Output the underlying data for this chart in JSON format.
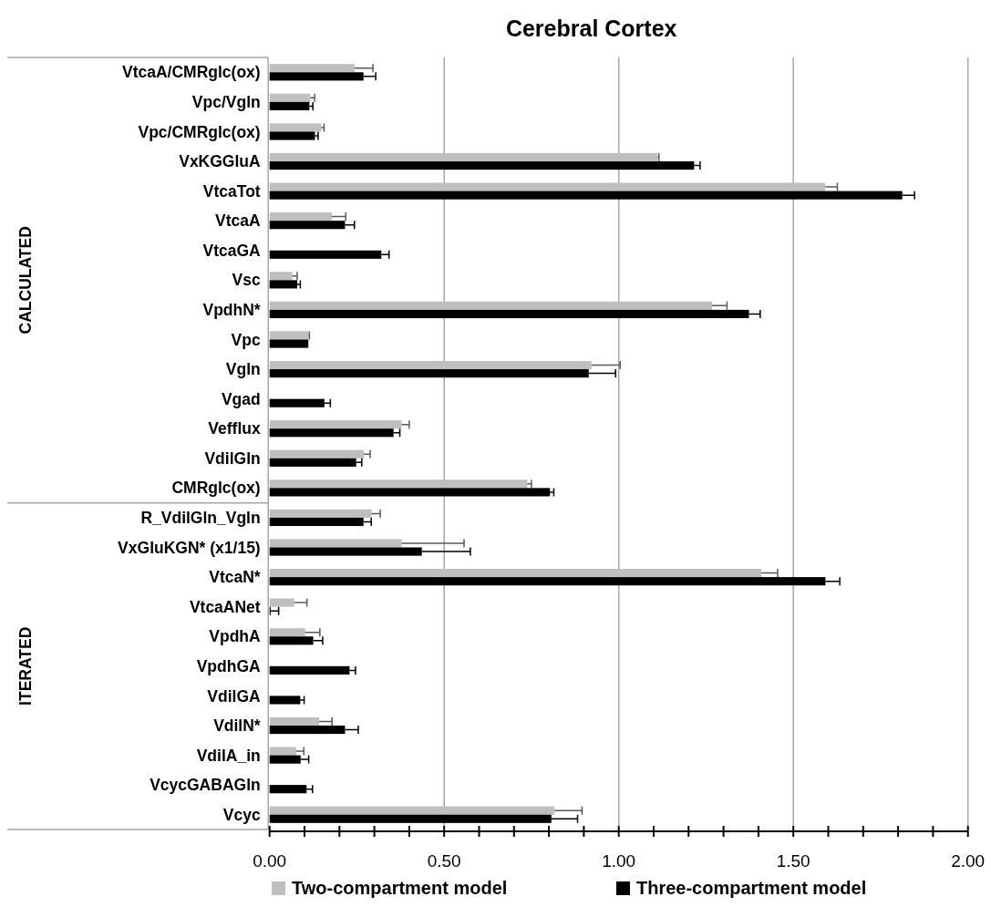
{
  "chart_data": {
    "type": "bar",
    "orientation": "horizontal",
    "title": "Cerebral Cortex",
    "categories": [
      "VtcaA/CMRglc(ox)",
      "Vpc/Vgln",
      "Vpc/CMRglc(ox)",
      "VxKGGluA",
      "VtcaTot",
      "VtcaA",
      "VtcaGA",
      "Vsc",
      "VpdhN*",
      "Vpc",
      "Vgln",
      "Vgad",
      "Vefflux",
      "VdilGln",
      "CMRglc(ox)",
      "R_VdilGln_Vgln",
      "VxGluKGN* (x1/15)",
      "VtcaN*",
      "VtcaANet",
      "VpdhA",
      "VpdhGA",
      "VdilGA",
      "VdilN*",
      "VdilA_in",
      "VcycGABAGln",
      "Vcyc"
    ],
    "series": [
      {
        "name": "Two-compartment model",
        "color": "#bfbfbf",
        "values": [
          0.243,
          0.117,
          0.148,
          1.111,
          1.591,
          0.178,
          null,
          0.065,
          1.267,
          0.111,
          0.922,
          null,
          0.378,
          0.27,
          0.738,
          0.292,
          0.378,
          1.408,
          0.07,
          0.102,
          null,
          null,
          0.142,
          0.076,
          null,
          0.816
        ],
        "errors": [
          [
            0.243,
            0.296
          ],
          [
            0.117,
            0.129
          ],
          [
            0.148,
            0.156
          ],
          [
            1.111,
            1.115
          ],
          [
            1.591,
            1.626
          ],
          [
            0.178,
            0.218
          ],
          null,
          [
            0.065,
            0.079
          ],
          [
            1.267,
            1.31
          ],
          [
            0.111,
            0.114
          ],
          [
            0.922,
            1.004
          ],
          null,
          [
            0.378,
            0.4
          ],
          [
            0.27,
            0.288
          ],
          [
            0.738,
            0.75
          ],
          [
            0.292,
            0.317
          ],
          [
            0.378,
            0.557
          ],
          [
            1.408,
            1.455
          ],
          [
            0.07,
            0.107
          ],
          [
            0.102,
            0.144
          ],
          null,
          null,
          [
            0.142,
            0.179
          ],
          [
            0.076,
            0.098
          ],
          null,
          [
            0.816,
            0.895
          ]
        ]
      },
      {
        "name": "Three-compartment model",
        "color": "#000000",
        "values": [
          0.269,
          0.114,
          0.13,
          1.216,
          1.812,
          0.216,
          0.32,
          0.079,
          1.373,
          0.111,
          0.914,
          0.157,
          0.355,
          0.248,
          0.803,
          0.269,
          0.436,
          1.592,
          0.003,
          0.125,
          0.229,
          0.088,
          0.216,
          0.089,
          0.106,
          0.807
        ],
        "errors": [
          [
            0.269,
            0.304
          ],
          [
            0.114,
            0.124
          ],
          [
            0.13,
            0.139
          ],
          [
            1.216,
            1.233
          ],
          [
            1.812,
            1.847
          ],
          [
            0.216,
            0.243
          ],
          [
            0.32,
            0.342
          ],
          [
            0.079,
            0.088
          ],
          [
            1.373,
            1.405
          ],
          null,
          [
            0.914,
            0.991
          ],
          [
            0.157,
            0.174
          ],
          [
            0.355,
            0.373
          ],
          [
            0.248,
            0.264
          ],
          [
            0.803,
            0.814
          ],
          [
            0.269,
            0.291
          ],
          [
            0.436,
            0.575
          ],
          [
            1.592,
            1.633
          ],
          [
            0.003,
            0.026
          ],
          [
            0.125,
            0.152
          ],
          [
            0.229,
            0.246
          ],
          [
            0.088,
            0.099
          ],
          [
            0.216,
            0.254
          ],
          [
            0.089,
            0.112
          ],
          [
            0.106,
            0.123
          ],
          [
            0.807,
            0.882
          ]
        ]
      }
    ],
    "xlim": [
      0,
      2
    ],
    "xticks": [
      {
        "value": 0,
        "label": "0.00"
      },
      {
        "value": 0.1,
        "label": null
      },
      {
        "value": 0.2,
        "label": null
      },
      {
        "value": 0.3,
        "label": null
      },
      {
        "value": 0.4,
        "label": null
      },
      {
        "value": 0.5,
        "label": "0.50"
      },
      {
        "value": 0.6,
        "label": null
      },
      {
        "value": 0.7,
        "label": null
      },
      {
        "value": 0.8,
        "label": null
      },
      {
        "value": 0.9,
        "label": null
      },
      {
        "value": 1,
        "label": "1.00"
      },
      {
        "value": 1.1,
        "label": null
      },
      {
        "value": 1.2,
        "label": null
      },
      {
        "value": 1.3,
        "label": null
      },
      {
        "value": 1.4,
        "label": null
      },
      {
        "value": 1.5,
        "label": "1.50"
      },
      {
        "value": 1.6,
        "label": null
      },
      {
        "value": 1.7,
        "label": null
      },
      {
        "value": 1.8,
        "label": null
      },
      {
        "value": 1.9,
        "label": null
      },
      {
        "value": 2,
        "label": "2.00"
      }
    ],
    "annotations": [
      "CALCULATED",
      "ITERATED"
    ],
    "grid": "x",
    "legend": "bottom"
  }
}
